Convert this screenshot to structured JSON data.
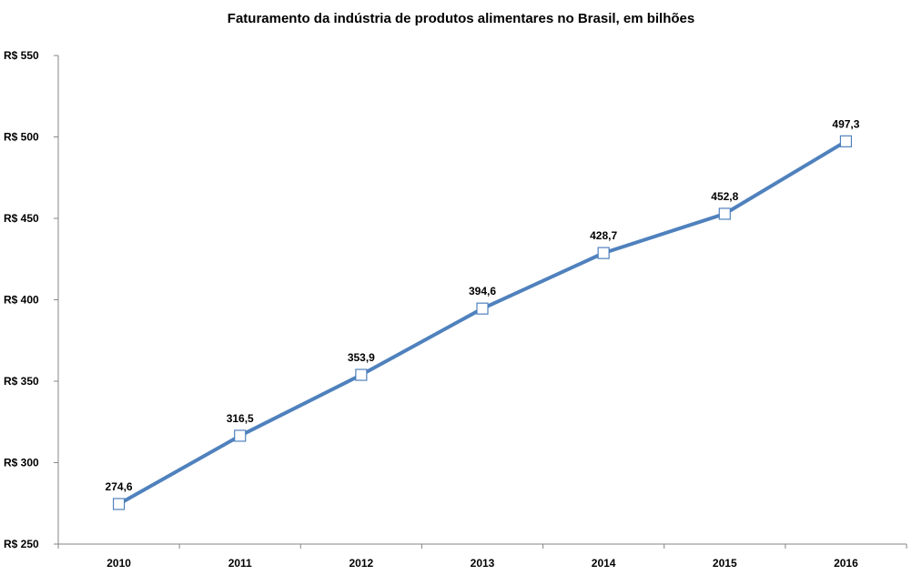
{
  "chart_data": {
    "type": "line",
    "title": "Faturamento da indústria de produtos alimentares no Brasil, em bilhões",
    "xlabel": "",
    "ylabel": "",
    "categories": [
      "2010",
      "2011",
      "2012",
      "2013",
      "2014",
      "2015",
      "2016"
    ],
    "series": [
      {
        "name": "Faturamento",
        "values": [
          274.6,
          316.5,
          353.9,
          394.6,
          428.7,
          452.8,
          497.3
        ],
        "labels": [
          "274,6",
          "316,5",
          "353,9",
          "394,6",
          "428,7",
          "452,8",
          "497,3"
        ]
      }
    ],
    "ylim": [
      250,
      550
    ],
    "yticks": [
      250,
      300,
      350,
      400,
      450,
      500,
      550
    ],
    "ytick_labels": [
      "R$ 250",
      "R$ 300",
      "R$ 350",
      "R$ 400",
      "R$ 450",
      "R$ 500",
      "R$ 550"
    ],
    "grid": false,
    "colors": {
      "line": "#4f81bd",
      "marker_fill": "#ffffff",
      "axis": "#868686"
    }
  }
}
